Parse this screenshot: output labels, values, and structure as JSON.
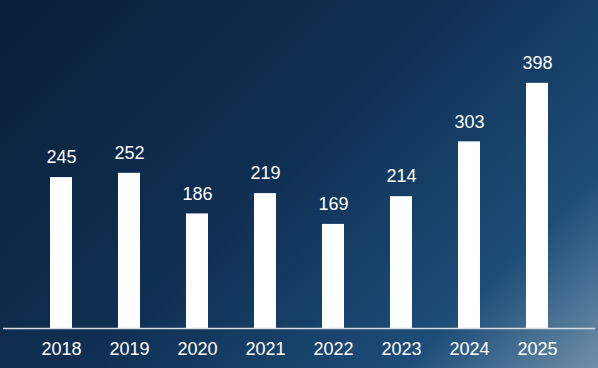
{
  "chart_data": {
    "type": "bar",
    "categories": [
      "2018",
      "2019",
      "2020",
      "2021",
      "2022",
      "2023",
      "2024",
      "2025"
    ],
    "values": [
      245,
      252,
      186,
      219,
      169,
      214,
      303,
      398
    ],
    "color": "#ffffff",
    "ylim": [
      0,
      500
    ],
    "data_labels": true,
    "tick_labels": "x",
    "grid": false
  }
}
